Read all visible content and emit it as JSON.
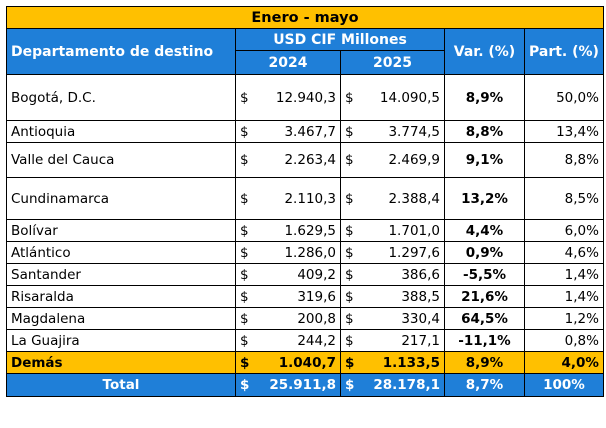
{
  "banner": "Enero - mayo",
  "headers": {
    "department": "Departamento de destino",
    "usd_group": "USD CIF Millones",
    "year_a": "2024",
    "year_b": "2025",
    "var": "Var. (%)",
    "part": "Part. (%)"
  },
  "rows": [
    {
      "dept": "Bogotá, D.C.",
      "cur_a": "$",
      "a": "12.940,3",
      "cur_b": "$",
      "b": "14.090,5",
      "var": "8,9%",
      "part": "50,0%"
    },
    {
      "dept": "Antioquia",
      "cur_a": "$",
      "a": "3.467,7",
      "cur_b": "$",
      "b": "3.774,5",
      "var": "8,8%",
      "part": "13,4%"
    },
    {
      "dept": "Valle del Cauca",
      "cur_a": "$",
      "a": "2.263,4",
      "cur_b": "$",
      "b": "2.469,9",
      "var": "9,1%",
      "part": "8,8%"
    },
    {
      "dept": "Cundinamarca",
      "cur_a": "$",
      "a": "2.110,3",
      "cur_b": "$",
      "b": "2.388,4",
      "var": "13,2%",
      "part": "8,5%"
    },
    {
      "dept": "Bolívar",
      "cur_a": "$",
      "a": "1.629,5",
      "cur_b": "$",
      "b": "1.701,0",
      "var": "4,4%",
      "part": "6,0%"
    },
    {
      "dept": "Atlántico",
      "cur_a": "$",
      "a": "1.286,0",
      "cur_b": "$",
      "b": "1.297,6",
      "var": "0,9%",
      "part": "4,6%"
    },
    {
      "dept": "Santander",
      "cur_a": "$",
      "a": "409,2",
      "cur_b": "$",
      "b": "386,6",
      "var": "-5,5%",
      "part": "1,4%"
    },
    {
      "dept": "Risaralda",
      "cur_a": "$",
      "a": "319,6",
      "cur_b": "$",
      "b": "388,5",
      "var": "21,6%",
      "part": "1,4%"
    },
    {
      "dept": "Magdalena",
      "cur_a": "$",
      "a": "200,8",
      "cur_b": "$",
      "b": "330,4",
      "var": "64,5%",
      "part": "1,2%"
    },
    {
      "dept": "La Guajira",
      "cur_a": "$",
      "a": "244,2",
      "cur_b": "$",
      "b": "217,1",
      "var": "-11,1%",
      "part": "0,8%"
    }
  ],
  "demas": {
    "dept": "Demás",
    "cur_a": "$",
    "a": "1.040,7",
    "cur_b": "$",
    "b": "1.133,5",
    "var": "8,9%",
    "part": "4,0%"
  },
  "total": {
    "dept": "Total",
    "cur_a": "$",
    "a": "25.911,8",
    "cur_b": "$",
    "b": "28.178,1",
    "var": "8,7%",
    "part": "100%"
  }
}
